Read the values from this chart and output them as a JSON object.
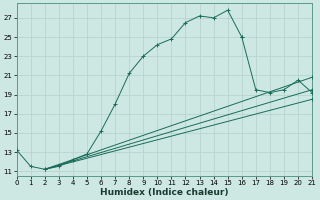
{
  "xlabel": "Humidex (Indice chaleur)",
  "bg_color": "#cde8e2",
  "grid_color": "#aaccC4",
  "line_color": "#1a6b5a",
  "xlim": [
    0,
    21
  ],
  "ylim": [
    10.5,
    28.5
  ],
  "yticks": [
    11,
    13,
    15,
    17,
    19,
    21,
    23,
    25,
    27
  ],
  "xticks": [
    0,
    1,
    2,
    3,
    4,
    5,
    6,
    7,
    8,
    9,
    10,
    11,
    12,
    13,
    14,
    15,
    16,
    17,
    18,
    19,
    20,
    21
  ],
  "main_x": [
    0,
    1,
    2,
    3,
    4,
    5,
    6,
    7,
    8,
    9,
    10,
    11,
    12,
    13,
    14,
    15,
    16
  ],
  "main_y": [
    13.2,
    11.5,
    11.2,
    11.5,
    12.2,
    12.8,
    15.2,
    18.0,
    21.2,
    23.0,
    24.2,
    24.8,
    26.5,
    27.2,
    27.0,
    27.8,
    25.0
  ],
  "tail_x": [
    16,
    17,
    18,
    19,
    20,
    21
  ],
  "tail_y": [
    25.0,
    19.5,
    19.2,
    19.5,
    20.5,
    19.2
  ],
  "lin_start_x": 2,
  "lin_start_y": 11.2,
  "lin_lines": [
    {
      "end_x": 21,
      "end_y": 20.8
    },
    {
      "end_x": 21,
      "end_y": 19.5
    },
    {
      "end_x": 21,
      "end_y": 18.5
    }
  ]
}
